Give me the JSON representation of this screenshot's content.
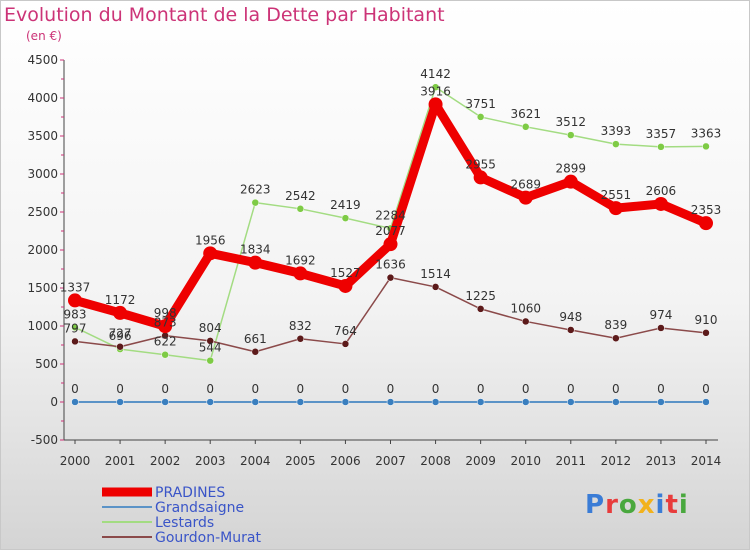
{
  "title": "Evolution du Montant de la Dette par Habitant",
  "subtitle": "(en €)",
  "logo": {
    "text": "Proxiti",
    "letter_colors": [
      "#3a7cd6",
      "#e83c3c",
      "#49a83e",
      "#f2b21c",
      "#3a7cd6",
      "#e83c3c",
      "#49a83e"
    ]
  },
  "chart_data": {
    "type": "line",
    "x": [
      2000,
      2001,
      2002,
      2003,
      2004,
      2005,
      2006,
      2007,
      2008,
      2009,
      2010,
      2011,
      2012,
      2013,
      2014
    ],
    "ylim": [
      -500,
      4500
    ],
    "yticks": [
      -500,
      0,
      500,
      1000,
      1500,
      2000,
      2500,
      3000,
      3500,
      4000,
      4500
    ],
    "grid": false,
    "legend_position": "bottom-left",
    "series": [
      {
        "name": "Grandsaigne",
        "color": "#5b93c7",
        "marker": "#3a7fbf",
        "width": 2,
        "values": [
          0,
          0,
          0,
          0,
          0,
          0,
          0,
          0,
          0,
          0,
          0,
          0,
          0,
          0,
          0
        ],
        "labels": [
          "0",
          "0",
          "0",
          "0",
          "0",
          "0",
          "0",
          "0",
          "0",
          "0",
          "0",
          "0",
          "0",
          "0",
          "0"
        ]
      },
      {
        "name": "Lestards",
        "color": "#a3dc82",
        "marker": "#7ecb45",
        "width": 1.5,
        "values": [
          983,
          696,
          622,
          544,
          2623,
          2542,
          2419,
          2284,
          4142,
          3751,
          3621,
          3512,
          3393,
          3357,
          3363
        ],
        "labels": [
          "983",
          "696",
          "622",
          "544",
          "2623",
          "2542",
          "2419",
          "2284",
          "4142",
          "3751",
          "3621",
          "3512",
          "3393",
          "3357",
          "3363"
        ]
      },
      {
        "name": "Gourdon-Murat",
        "color": "#8b4a4a",
        "marker": "#5c1a1a",
        "width": 1.5,
        "values": [
          797,
          727,
          873,
          804,
          661,
          832,
          764,
          1636,
          1514,
          1225,
          1060,
          948,
          839,
          974,
          910
        ],
        "labels": [
          "797",
          "727",
          "873",
          "804",
          "661",
          "832",
          "764",
          "1636",
          "1514",
          "1225",
          "1060",
          "948",
          "839",
          "974",
          "910"
        ]
      },
      {
        "name": "PRADINES",
        "color": "#ee0000",
        "marker": "#ee0000",
        "width": 9,
        "values": [
          1337,
          1172,
          998,
          1956,
          1834,
          1692,
          1527,
          2077,
          3916,
          2955,
          2689,
          2899,
          2551,
          2606,
          2353
        ],
        "labels": [
          "1337",
          "1172",
          "998",
          "1956",
          "1834",
          "1692",
          "1527",
          "2077",
          "3916",
          "2955",
          "2689",
          "2899",
          "2551",
          "2606",
          "2353"
        ]
      }
    ],
    "legend": [
      {
        "name": "PRADINES",
        "color": "#ee0000",
        "text_color": "#3a55c8",
        "width": 9
      },
      {
        "name": "Grandsaigne",
        "color": "#5b93c7",
        "text_color": "#3a55c8",
        "width": 2
      },
      {
        "name": "Lestards",
        "color": "#a3dc82",
        "text_color": "#3a55c8",
        "width": 2
      },
      {
        "name": "Gourdon-Murat",
        "color": "#8b4a4a",
        "text_color": "#3a55c8",
        "width": 2
      }
    ]
  }
}
